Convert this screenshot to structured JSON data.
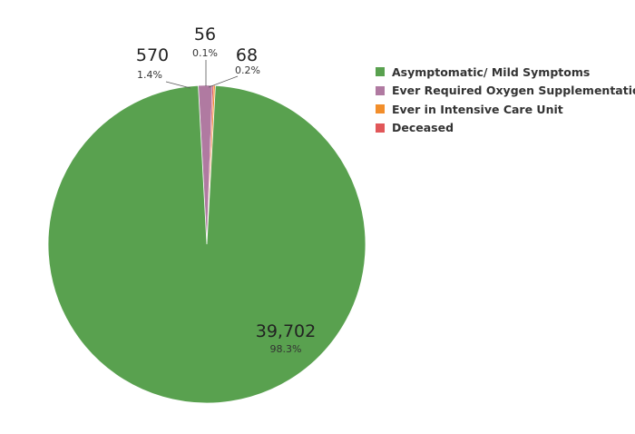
{
  "chart_data": {
    "type": "pie",
    "title": "",
    "slices": [
      {
        "label": "Asymptomatic/ Mild Symptoms",
        "value": 39702,
        "value_text": "39,702",
        "percent_text": "98.3%",
        "color": "#59a14f"
      },
      {
        "label": "Ever Required Oxygen Supplementation",
        "value": 570,
        "value_text": "570",
        "percent_text": "1.4%",
        "color": "#b07aa1"
      },
      {
        "label": "Ever in Intensive Care Unit",
        "value": 68,
        "value_text": "68",
        "percent_text": "0.2%",
        "color": "#f28e2b"
      },
      {
        "label": "Deceased",
        "value": 56,
        "value_text": "56",
        "percent_text": "0.1%",
        "color": "#e15759"
      }
    ],
    "legend_position": "top-right"
  }
}
